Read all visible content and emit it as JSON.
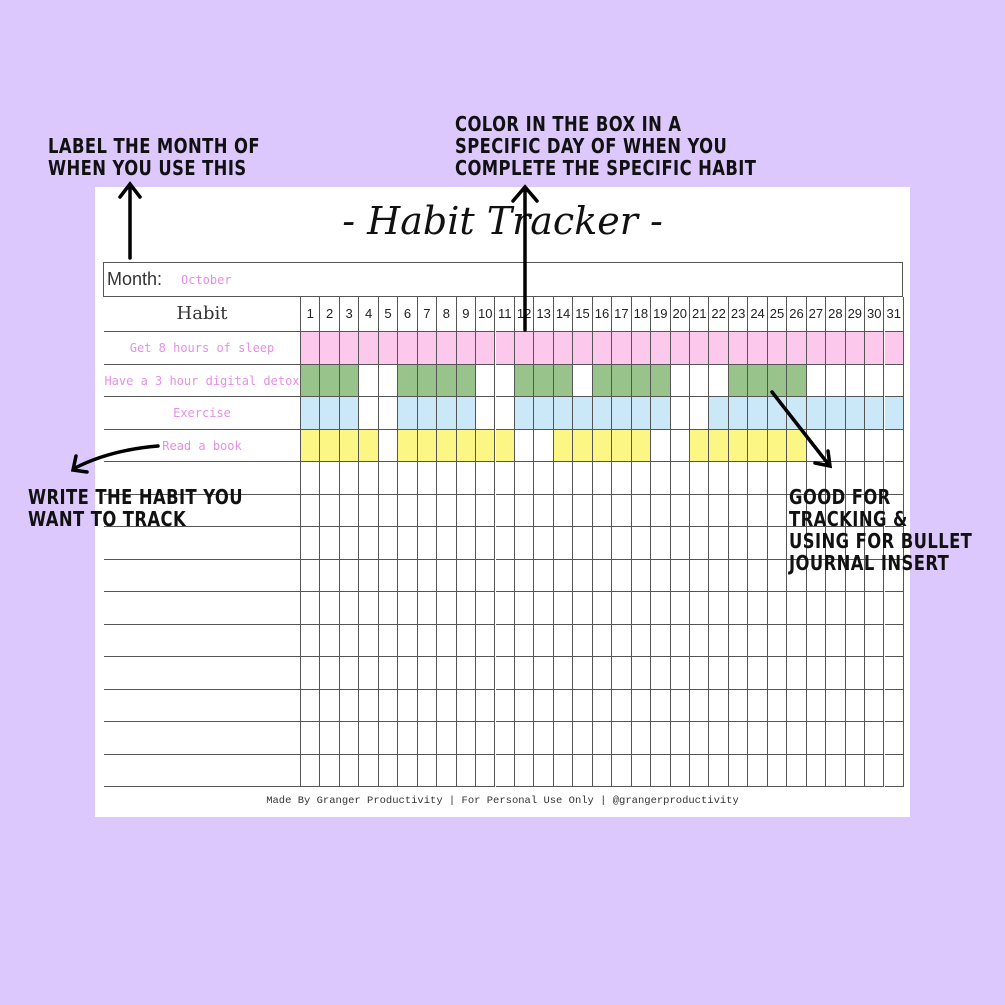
{
  "annotations": {
    "month_note": "LABEL THE MONTH OF\nWHEN YOU USE THIS",
    "color_note": "COLOR IN THE BOX IN A\nSPECIFIC DAY OF WHEN YOU\nCOMPLETE THE SPECIFIC HABIT",
    "habit_note": "WRITE THE HABIT YOU\nWANT TO TRACK",
    "bullet_note": "GOOD FOR\nTRACKING &\nUSING FOR BULLET\nJOURNAL INSERT"
  },
  "tracker": {
    "title": "- Habit Tracker -",
    "month_label": "Month:",
    "month_value": "October",
    "habit_header": "Habit",
    "days": 31,
    "empty_rows": 10,
    "habits": [
      {
        "name": "Get 8 hours of sleep",
        "color": "#fcc8ec",
        "done": [
          1,
          2,
          3,
          4,
          5,
          6,
          7,
          8,
          9,
          10,
          11,
          12,
          13,
          14,
          15,
          16,
          17,
          18,
          19,
          20,
          21,
          22,
          23,
          24,
          25,
          26,
          27,
          28,
          29,
          30,
          31
        ]
      },
      {
        "name": "Have a 3 hour digital detox",
        "color": "#98c48c",
        "done": [
          1,
          2,
          3,
          6,
          7,
          8,
          9,
          12,
          13,
          14,
          16,
          17,
          18,
          19,
          23,
          24,
          25,
          26
        ]
      },
      {
        "name": "Exercise",
        "color": "#cbe8f8",
        "done": [
          1,
          2,
          3,
          6,
          7,
          8,
          9,
          12,
          13,
          14,
          15,
          16,
          17,
          18,
          19,
          22,
          23,
          24,
          25,
          26,
          27,
          28,
          29,
          30,
          31
        ]
      },
      {
        "name": "Read a book",
        "color": "#fcf784",
        "done": [
          1,
          2,
          3,
          4,
          6,
          7,
          8,
          9,
          10,
          11,
          14,
          15,
          16,
          17,
          18,
          21,
          22,
          23,
          24,
          25,
          26
        ]
      }
    ],
    "footer": "Made By Granger Productivity | For Personal Use Only | @grangerproductivity"
  },
  "colors": {
    "background": "#dcc8fc",
    "habit_text": "#e58fe6"
  }
}
